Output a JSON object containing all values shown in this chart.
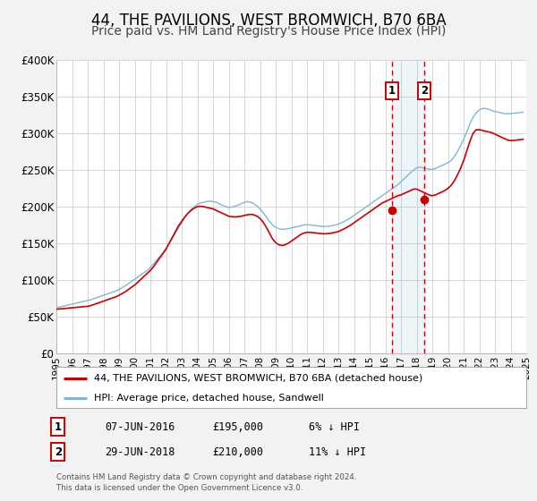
{
  "title": "44, THE PAVILIONS, WEST BROMWICH, B70 6BA",
  "subtitle": "Price paid vs. HM Land Registry's House Price Index (HPI)",
  "xlim": [
    1995,
    2025
  ],
  "ylim": [
    0,
    400000
  ],
  "yticks": [
    0,
    50000,
    100000,
    150000,
    200000,
    250000,
    300000,
    350000,
    400000
  ],
  "ytick_labels": [
    "£0",
    "£50K",
    "£100K",
    "£150K",
    "£200K",
    "£250K",
    "£300K",
    "£350K",
    "£400K"
  ],
  "xticks": [
    1995,
    1996,
    1997,
    1998,
    1999,
    2000,
    2001,
    2002,
    2003,
    2004,
    2005,
    2006,
    2007,
    2008,
    2009,
    2010,
    2011,
    2012,
    2013,
    2014,
    2015,
    2016,
    2017,
    2018,
    2019,
    2020,
    2021,
    2022,
    2023,
    2024,
    2025
  ],
  "red_line_color": "#cc0000",
  "blue_line_color": "#7eb6d4",
  "marker_color": "#cc0000",
  "vline_color": "#cc0000",
  "sale1_x": 2016.44,
  "sale1_y": 195000,
  "sale1_label": "1",
  "sale2_x": 2018.49,
  "sale2_y": 210000,
  "sale2_label": "2",
  "legend_label_red": "44, THE PAVILIONS, WEST BROMWICH, B70 6BA (detached house)",
  "legend_label_blue": "HPI: Average price, detached house, Sandwell",
  "table_row1": [
    "1",
    "07-JUN-2016",
    "£195,000",
    "6% ↓ HPI"
  ],
  "table_row2": [
    "2",
    "29-JUN-2018",
    "£210,000",
    "11% ↓ HPI"
  ],
  "footnote1": "Contains HM Land Registry data © Crown copyright and database right 2024.",
  "footnote2": "This data is licensed under the Open Government Licence v3.0.",
  "background_color": "#f2f2f2",
  "plot_bg_color": "#ffffff",
  "title_fontsize": 12,
  "subtitle_fontsize": 10,
  "hpi_years": [
    1995.0,
    1995.1,
    1995.2,
    1995.3,
    1995.4,
    1995.5,
    1995.6,
    1995.7,
    1995.8,
    1995.9,
    1996.0,
    1996.1,
    1996.2,
    1996.3,
    1996.4,
    1996.5,
    1996.6,
    1996.7,
    1996.8,
    1996.9,
    1997.0,
    1997.2,
    1997.4,
    1997.6,
    1997.8,
    1998.0,
    1998.2,
    1998.4,
    1998.6,
    1998.8,
    1999.0,
    1999.2,
    1999.4,
    1999.6,
    1999.8,
    2000.0,
    2000.2,
    2000.4,
    2000.6,
    2000.8,
    2001.0,
    2001.2,
    2001.4,
    2001.6,
    2001.8,
    2002.0,
    2002.2,
    2002.4,
    2002.6,
    2002.8,
    2003.0,
    2003.2,
    2003.4,
    2003.6,
    2003.8,
    2004.0,
    2004.2,
    2004.4,
    2004.6,
    2004.8,
    2005.0,
    2005.2,
    2005.4,
    2005.6,
    2005.8,
    2006.0,
    2006.2,
    2006.4,
    2006.6,
    2006.8,
    2007.0,
    2007.2,
    2007.4,
    2007.6,
    2007.8,
    2008.0,
    2008.2,
    2008.4,
    2008.6,
    2008.8,
    2009.0,
    2009.2,
    2009.4,
    2009.6,
    2009.8,
    2010.0,
    2010.2,
    2010.4,
    2010.6,
    2010.8,
    2011.0,
    2011.2,
    2011.4,
    2011.6,
    2011.8,
    2012.0,
    2012.2,
    2012.4,
    2012.6,
    2012.8,
    2013.0,
    2013.2,
    2013.4,
    2013.6,
    2013.8,
    2014.0,
    2014.2,
    2014.4,
    2014.6,
    2014.8,
    2015.0,
    2015.2,
    2015.4,
    2015.6,
    2015.8,
    2016.0,
    2016.2,
    2016.4,
    2016.6,
    2016.8,
    2017.0,
    2017.2,
    2017.4,
    2017.6,
    2017.8,
    2018.0,
    2018.2,
    2018.4,
    2018.6,
    2018.8,
    2019.0,
    2019.2,
    2019.4,
    2019.6,
    2019.8,
    2020.0,
    2020.2,
    2020.4,
    2020.6,
    2020.8,
    2021.0,
    2021.2,
    2021.4,
    2021.6,
    2021.8,
    2022.0,
    2022.2,
    2022.4,
    2022.6,
    2022.8,
    2023.0,
    2023.2,
    2023.4,
    2023.6,
    2023.8,
    2024.0,
    2024.2,
    2024.4,
    2024.6,
    2024.8
  ],
  "hpi_values": [
    62000,
    62500,
    63000,
    63500,
    64000,
    64500,
    65000,
    65500,
    66000,
    66500,
    67000,
    67500,
    68000,
    68500,
    69000,
    69500,
    70000,
    70500,
    71000,
    71500,
    72000,
    73000,
    74500,
    76000,
    77500,
    79000,
    80500,
    82000,
    83500,
    85000,
    87000,
    89500,
    92000,
    95000,
    98000,
    101000,
    104000,
    107000,
    110000,
    113000,
    117000,
    122000,
    127000,
    132000,
    137000,
    143000,
    150000,
    157000,
    164000,
    171000,
    178000,
    185000,
    191000,
    196000,
    200000,
    203000,
    205000,
    206000,
    207000,
    207500,
    207000,
    206000,
    204000,
    202000,
    200000,
    199000,
    199500,
    200500,
    202000,
    204000,
    206000,
    207000,
    206000,
    204000,
    201000,
    197000,
    192000,
    186000,
    180000,
    175000,
    172000,
    170000,
    169000,
    169500,
    170000,
    171000,
    172000,
    173000,
    174000,
    175000,
    175500,
    175000,
    174500,
    174000,
    173500,
    173000,
    173000,
    173500,
    174000,
    175000,
    176000,
    178000,
    180000,
    182500,
    185000,
    188000,
    191000,
    194000,
    197000,
    200000,
    203000,
    206000,
    209000,
    212000,
    215000,
    218000,
    221000,
    224000,
    227000,
    230000,
    234000,
    238000,
    242000,
    246000,
    250000,
    253000,
    254000,
    253000,
    252000,
    251000,
    251000,
    252000,
    254000,
    256000,
    258000,
    260000,
    263000,
    268000,
    275000,
    283000,
    292000,
    302000,
    313000,
    322000,
    328000,
    332000,
    334000,
    334000,
    333000,
    331000,
    330000,
    329000,
    328000,
    327000,
    327000,
    327000,
    327500,
    328000,
    328500,
    329000
  ],
  "red_values": [
    60000,
    60200,
    60400,
    60600,
    60800,
    61000,
    61200,
    61400,
    61600,
    61800,
    62000,
    62200,
    62400,
    62600,
    62800,
    63000,
    63200,
    63400,
    63600,
    63800,
    64000,
    65000,
    66500,
    68000,
    69500,
    71000,
    72500,
    74000,
    75500,
    77000,
    79000,
    81500,
    84000,
    87000,
    90000,
    93000,
    97000,
    101000,
    105000,
    109000,
    113000,
    118000,
    124000,
    130000,
    136000,
    142000,
    150000,
    158000,
    166000,
    174000,
    180000,
    186000,
    191000,
    195000,
    198000,
    200000,
    200500,
    200000,
    199000,
    198000,
    197000,
    195000,
    193000,
    191000,
    189000,
    187000,
    186500,
    186000,
    186500,
    187000,
    188000,
    189000,
    189500,
    189000,
    187000,
    184000,
    179000,
    172000,
    164000,
    156000,
    151000,
    148000,
    147000,
    148000,
    150000,
    153000,
    156000,
    159000,
    162000,
    164000,
    165000,
    165000,
    164500,
    164000,
    163500,
    163000,
    163000,
    163500,
    164000,
    165000,
    166000,
    168000,
    170000,
    172500,
    175000,
    178000,
    181000,
    184000,
    187000,
    190000,
    193000,
    196000,
    199000,
    202000,
    205000,
    207000,
    209000,
    211000,
    213000,
    215000,
    216000,
    218000,
    220000,
    222000,
    224000,
    224000,
    222000,
    220000,
    218000,
    216000,
    215000,
    216000,
    218000,
    220000,
    222000,
    225000,
    229000,
    235000,
    243000,
    252000,
    263000,
    276000,
    289000,
    300000,
    305000,
    305000,
    304000,
    303000,
    302000,
    301000,
    299000,
    297000,
    295000,
    293000,
    291000,
    290000,
    290500,
    291000,
    291500,
    292000
  ]
}
